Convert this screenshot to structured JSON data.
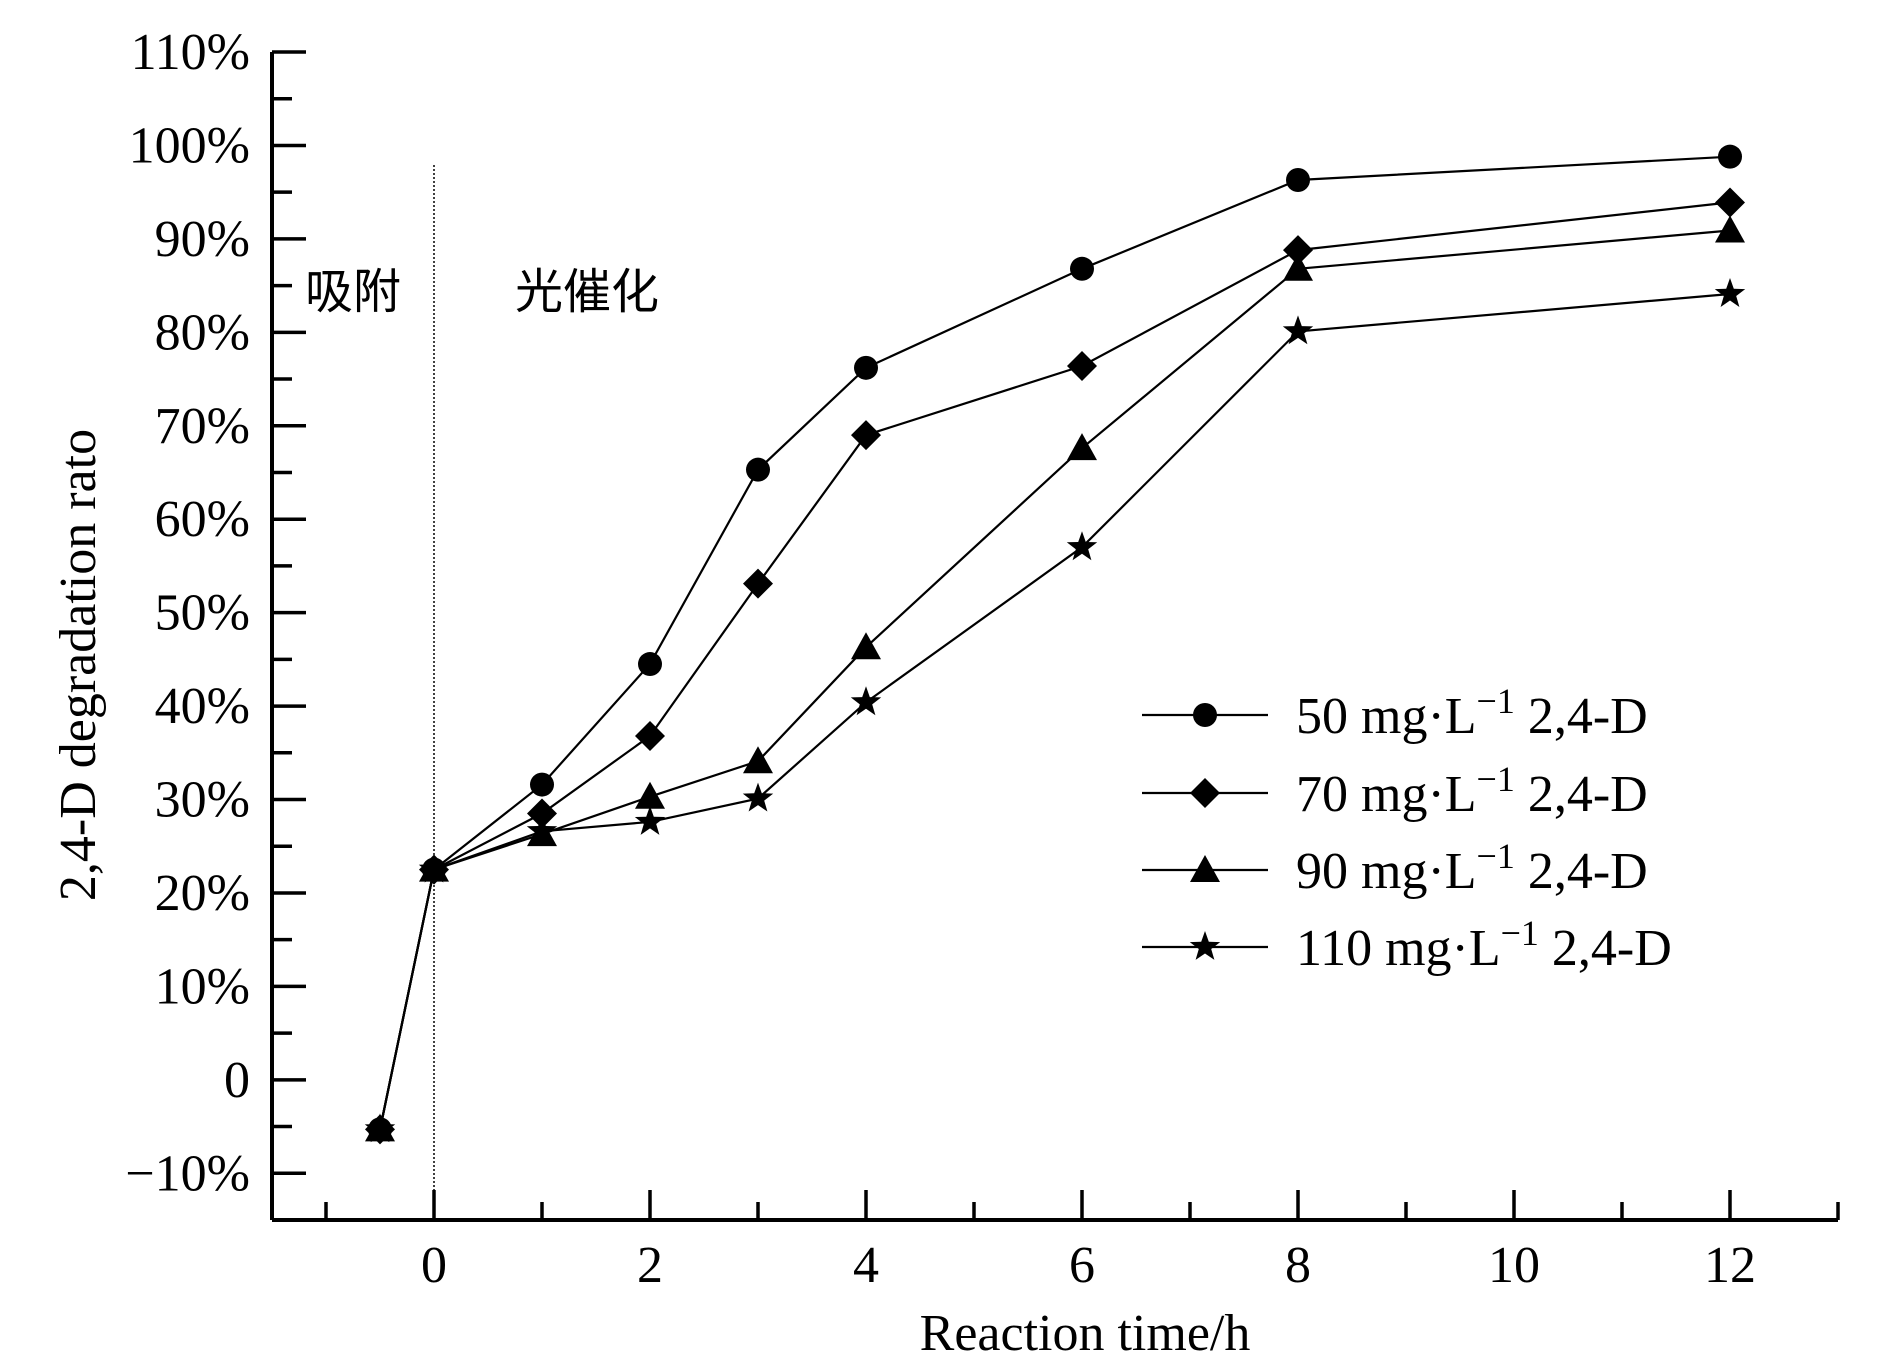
{
  "chart_data": {
    "type": "line",
    "xlabel": "Reaction time/h",
    "ylabel": "2,4-D degradation rato",
    "xlim": [
      -1.5,
      13.0
    ],
    "ylim": [
      -15,
      110
    ],
    "xticks": [
      0,
      2,
      4,
      6,
      8,
      10,
      12
    ],
    "xtick_labels": [
      "0",
      "2",
      "4",
      "6",
      "8",
      "10",
      "12"
    ],
    "yticks": [
      -10,
      0,
      10,
      20,
      30,
      40,
      50,
      60,
      70,
      80,
      90,
      100,
      110
    ],
    "ytick_labels": [
      "−10%",
      "0",
      "10%",
      "20%",
      "30%",
      "40%",
      "50%",
      "60%",
      "70%",
      "80%",
      "90%",
      "100%",
      "110%"
    ],
    "y_minor_step": 5,
    "x_minor_step": 1,
    "divider_x": 0,
    "regions": [
      {
        "label": "吸附"
      },
      {
        "label": "光催化"
      }
    ],
    "legend_position": "center-right",
    "x": [
      -0.5,
      0,
      1,
      2,
      3,
      4,
      6,
      8,
      12
    ],
    "series": [
      {
        "name": "50 mg·L⁻¹ 2,4-D",
        "label_main": "50 mg·L",
        "label_sup": "−1",
        "label_tail": "2,4-D",
        "marker": "circle",
        "values": [
          -5.3,
          22.5,
          31.6,
          44.5,
          65.3,
          76.2,
          86.8,
          96.3,
          98.8
        ]
      },
      {
        "name": "70 mg·L⁻¹ 2,4-D",
        "label_main": "70 mg·L",
        "label_sup": "−1",
        "label_tail": "2,4-D",
        "marker": "diamond",
        "values": [
          -5.3,
          22.5,
          28.5,
          36.8,
          53.1,
          69.0,
          76.4,
          88.8,
          93.9
        ]
      },
      {
        "name": "90 mg·L⁻¹ 2,4-D",
        "label_main": "90 mg·L",
        "label_sup": "−1",
        "label_tail": "2,4-D",
        "marker": "triangle",
        "values": [
          -5.3,
          22.5,
          26.3,
          30.3,
          34.1,
          46.3,
          67.6,
          86.8,
          90.9
        ]
      },
      {
        "name": "110 mg·L⁻¹ 2,4-D",
        "label_main": "110 mg·L",
        "label_sup": "−1",
        "label_tail": "2,4-D",
        "marker": "star",
        "values": [
          -5.3,
          22.5,
          26.6,
          27.6,
          30.1,
          40.4,
          57.0,
          80.1,
          84.1
        ]
      }
    ]
  }
}
